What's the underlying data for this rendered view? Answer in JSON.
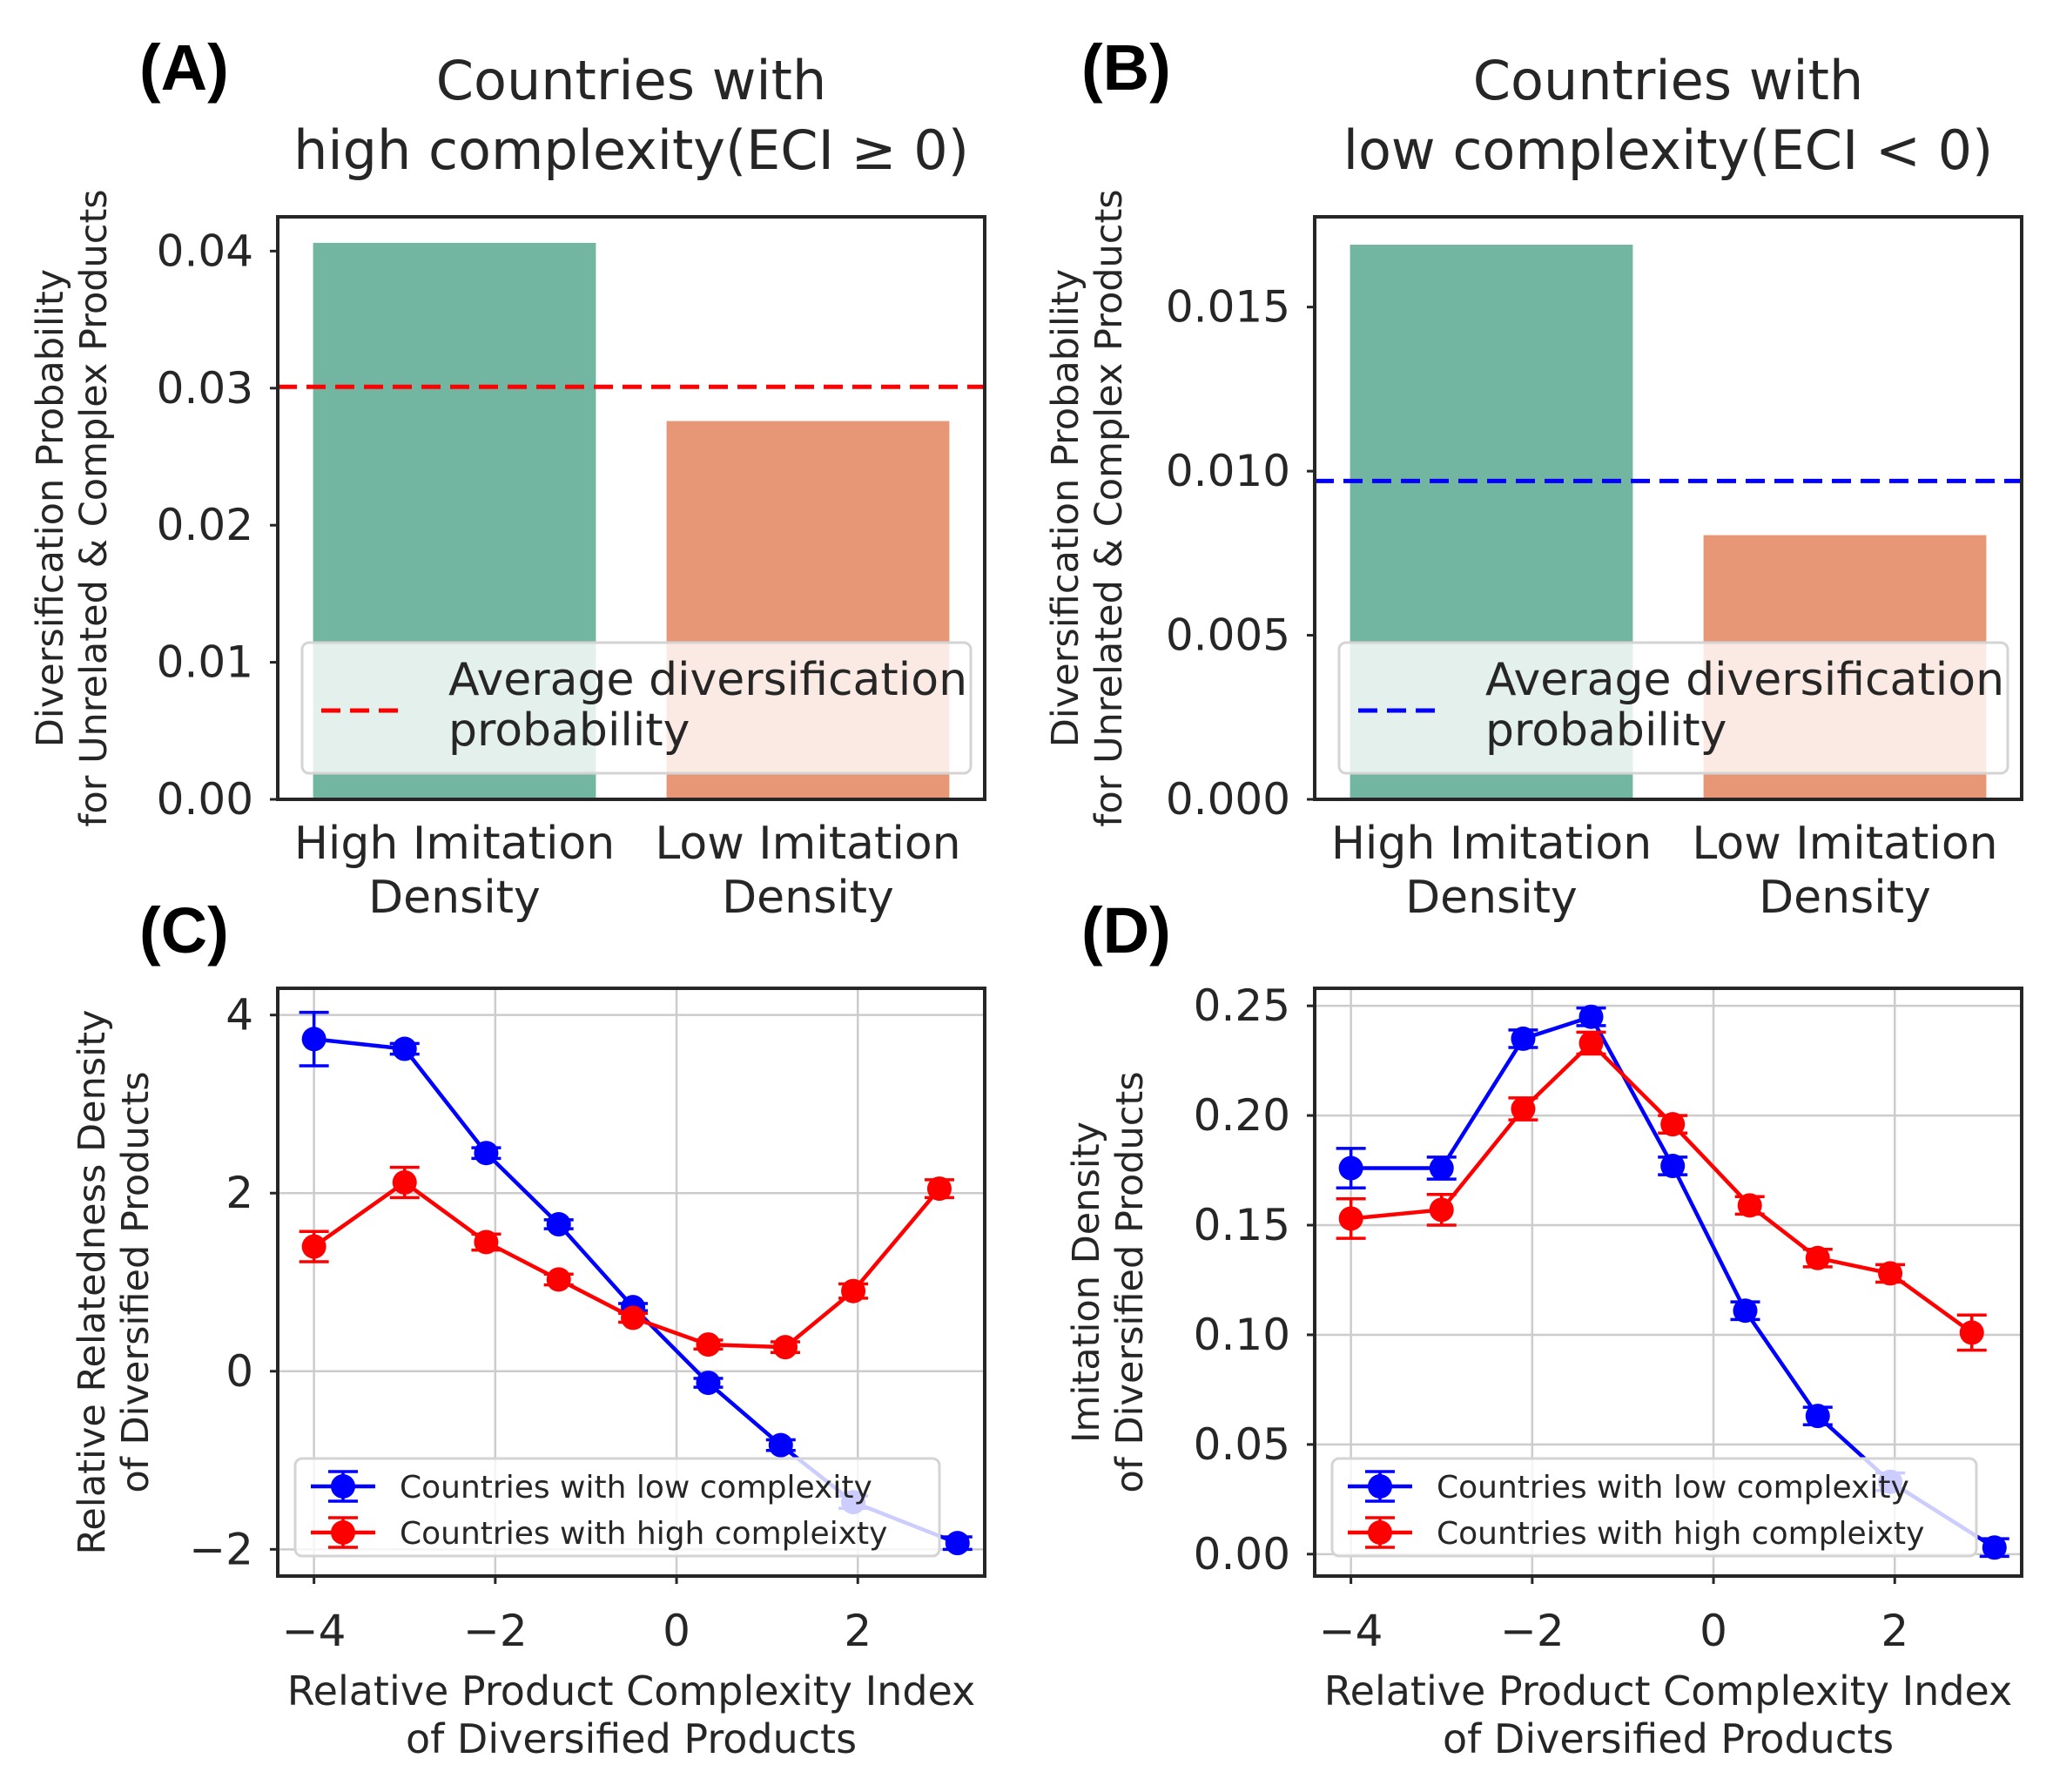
{
  "panels": [
    {
      "id": "A",
      "label": "(A)"
    },
    {
      "id": "B",
      "label": "(B)"
    },
    {
      "id": "C",
      "label": "(C)"
    },
    {
      "id": "D",
      "label": "(D)"
    }
  ],
  "chart_data": [
    {
      "panel": "(A)",
      "type": "bar",
      "title": [
        "Countries with",
        "high complexity(ECI ≥ 0)"
      ],
      "ylabel": [
        "Diversification Probability",
        "for Unrelated & Complex Products"
      ],
      "categories": [
        [
          "High Imitation",
          "Density"
        ],
        [
          "Low Imitation",
          "Density"
        ]
      ],
      "values": [
        0.0406,
        0.0276
      ],
      "bar_colors": [
        "#72b5a0",
        "#e89776"
      ],
      "ylim": [
        0,
        0.0425
      ],
      "yticks": [
        0.0,
        0.01,
        0.02,
        0.03,
        0.04
      ],
      "ytick_labels": [
        "0.00",
        "0.01",
        "0.02",
        "0.03",
        "0.04"
      ],
      "reference_line": {
        "value": 0.0301,
        "color": "#ff0000",
        "style": "dashed"
      },
      "legend": {
        "label": [
          "Average diversification",
          "probability"
        ],
        "placement": "lower-right"
      },
      "grid": false
    },
    {
      "panel": "(B)",
      "type": "bar",
      "title": [
        "Countries with",
        "low complexity(ECI < 0)"
      ],
      "ylabel": [
        "Diversification Probability",
        "for Unrelated & Complex Products"
      ],
      "categories": [
        [
          "High Imitation",
          "Density"
        ],
        [
          "Low Imitation",
          "Density"
        ]
      ],
      "values": [
        0.0169,
        0.00805
      ],
      "bar_colors": [
        "#72b5a0",
        "#e89776"
      ],
      "ylim": [
        0,
        0.01775
      ],
      "yticks": [
        0.0,
        0.005,
        0.01,
        0.015
      ],
      "ytick_labels": [
        "0.000",
        "0.005",
        "0.010",
        "0.015"
      ],
      "reference_line": {
        "value": 0.0097,
        "color": "#0000ff",
        "style": "dashed"
      },
      "legend": {
        "label": [
          "Average diversification",
          "probability"
        ],
        "placement": "lower-right"
      },
      "grid": false
    },
    {
      "panel": "(C)",
      "type": "line",
      "xlabel": [
        "Relative Product Complexity Index",
        "of Diversified Products"
      ],
      "ylabel": [
        "Relative Relatedness Density",
        "of Diversified Products"
      ],
      "xlim": [
        -4.4,
        3.4
      ],
      "ylim": [
        -2.3,
        4.3
      ],
      "xticks": [
        -4,
        -2,
        0,
        2
      ],
      "xtick_labels": [
        "−4",
        "−2",
        "0",
        "2"
      ],
      "yticks": [
        -2,
        0,
        2,
        4
      ],
      "ytick_labels": [
        "−2",
        "0",
        "2",
        "4"
      ],
      "grid": true,
      "legend_placement": "lower-left",
      "series": [
        {
          "name": "Countries with low complexity",
          "color": "#0000ff",
          "x": [
            -4.0,
            -3.0,
            -2.1,
            -1.3,
            -0.48,
            0.35,
            1.15,
            1.95,
            3.1
          ],
          "y": [
            3.73,
            3.62,
            2.45,
            1.65,
            0.72,
            -0.13,
            -0.83,
            -1.47,
            -1.93
          ],
          "yerr": [
            0.3,
            0.06,
            0.06,
            0.05,
            0.04,
            0.05,
            0.06,
            0.07,
            0.07
          ]
        },
        {
          "name": "Countries with high compleixty",
          "color": "#ff0000",
          "x": [
            -4.0,
            -3.0,
            -2.1,
            -1.3,
            -0.48,
            0.35,
            1.2,
            1.95,
            2.9
          ],
          "y": [
            1.4,
            2.12,
            1.45,
            1.03,
            0.6,
            0.3,
            0.27,
            0.9,
            2.05
          ],
          "yerr": [
            0.17,
            0.17,
            0.09,
            0.06,
            0.05,
            0.05,
            0.06,
            0.08,
            0.1
          ]
        }
      ]
    },
    {
      "panel": "(D)",
      "type": "line",
      "xlabel": [
        "Relative Product Complexity Index",
        "of Diversified Products"
      ],
      "ylabel": [
        "Imitation Density",
        "of Diversified Products"
      ],
      "xlim": [
        -4.4,
        3.4
      ],
      "ylim": [
        -0.01,
        0.258
      ],
      "xticks": [
        -4,
        -2,
        0,
        2
      ],
      "xtick_labels": [
        "−4",
        "−2",
        "0",
        "2"
      ],
      "yticks": [
        0.0,
        0.05,
        0.1,
        0.15,
        0.2,
        0.25
      ],
      "ytick_labels": [
        "0.00",
        "0.05",
        "0.10",
        "0.15",
        "0.20",
        "0.25"
      ],
      "grid": true,
      "legend_placement": "lower-left",
      "series": [
        {
          "name": "Countries with low complexity",
          "color": "#0000ff",
          "x": [
            -4.0,
            -3.0,
            -2.1,
            -1.35,
            -0.45,
            0.35,
            1.15,
            1.95,
            3.1
          ],
          "y": [
            0.176,
            0.176,
            0.235,
            0.245,
            0.177,
            0.111,
            0.063,
            0.033,
            0.003
          ],
          "yerr": [
            0.009,
            0.005,
            0.004,
            0.004,
            0.004,
            0.004,
            0.004,
            0.004,
            0.004
          ]
        },
        {
          "name": "Countries with high compleixty",
          "color": "#ff0000",
          "x": [
            -4.0,
            -3.0,
            -2.1,
            -1.35,
            -0.45,
            0.4,
            1.15,
            1.95,
            2.85
          ],
          "y": [
            0.153,
            0.157,
            0.203,
            0.233,
            0.196,
            0.159,
            0.135,
            0.128,
            0.101
          ],
          "yerr": [
            0.009,
            0.007,
            0.005,
            0.005,
            0.004,
            0.004,
            0.004,
            0.004,
            0.008
          ]
        }
      ]
    }
  ]
}
